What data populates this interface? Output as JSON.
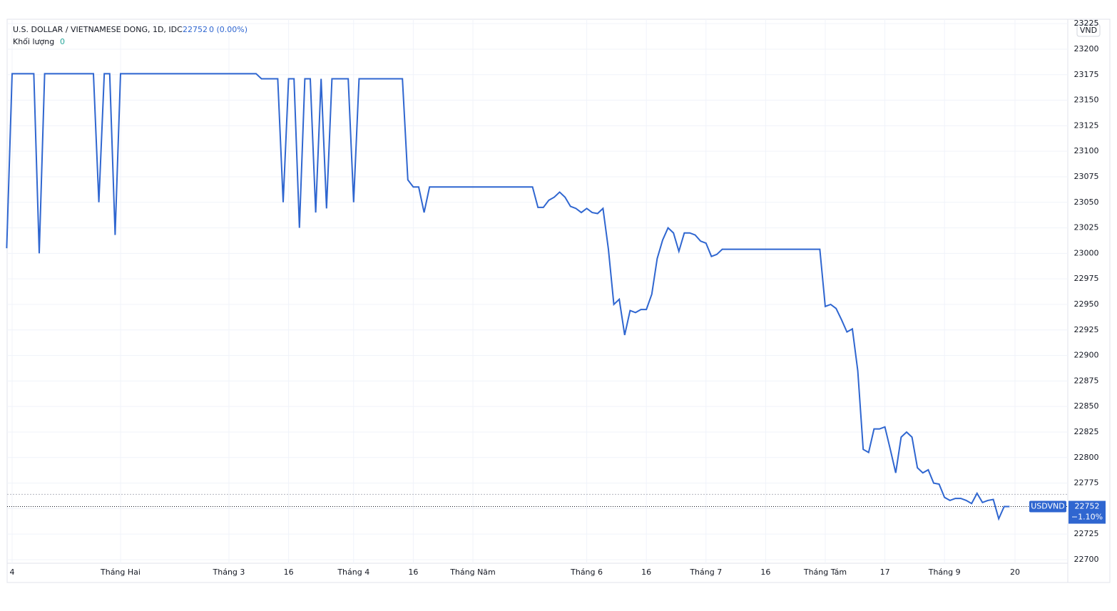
{
  "chart_data": {
    "type": "line",
    "title": "U.S. DOLLAR / VIETNAMESE DONG, 1D, IDC",
    "last": 22752,
    "change": "0 (0.00%)",
    "volume_label": "Khối lượng",
    "volume": 0,
    "currency": "VND",
    "symbol": "USDVND",
    "change_label": "−1.10%",
    "reference_line": 22764,
    "grid": true,
    "xlim": [
      -0.92,
      194.74
    ],
    "ylim": [
      22696.5,
      23229.3
    ],
    "yticks": [
      22700,
      22725,
      22750,
      22775,
      22800,
      22825,
      22850,
      22875,
      22900,
      22925,
      22950,
      22975,
      23000,
      23025,
      23050,
      23075,
      23100,
      23125,
      23150,
      23175,
      23200,
      23225
    ],
    "xticks": [
      {
        "value": 0,
        "label": "4"
      },
      {
        "value": 20,
        "label": "Tháng Hai"
      },
      {
        "value": 40,
        "label": "Tháng 3"
      },
      {
        "value": 51,
        "label": "16"
      },
      {
        "value": 63,
        "label": "Tháng 4"
      },
      {
        "value": 74,
        "label": "16"
      },
      {
        "value": 85,
        "label": "Tháng Năm"
      },
      {
        "value": 106,
        "label": "Tháng 6"
      },
      {
        "value": 117,
        "label": "16"
      },
      {
        "value": 128,
        "label": "Tháng 7"
      },
      {
        "value": 139,
        "label": "16"
      },
      {
        "value": 150,
        "label": "Tháng Tám"
      },
      {
        "value": 161,
        "label": "17"
      },
      {
        "value": 172,
        "label": "Tháng 9"
      },
      {
        "value": 185,
        "label": "20"
      }
    ],
    "series": [
      {
        "name": "USDVND",
        "color": "#2f66d0",
        "x": [
          -1,
          0,
          4,
          5,
          6,
          15,
          16,
          17,
          18,
          19,
          20,
          45,
          46,
          49,
          50,
          51,
          52,
          53,
          54,
          55,
          56,
          57,
          58,
          59,
          62,
          63,
          64,
          72,
          73,
          74,
          75,
          76,
          77,
          96,
          97,
          98,
          99,
          100,
          101,
          102,
          103,
          104,
          105,
          106,
          107,
          108,
          109,
          110,
          111,
          112,
          113,
          114,
          115,
          116,
          117,
          118,
          119,
          120,
          121,
          122,
          123,
          124,
          125,
          126,
          127,
          128,
          129,
          130,
          131,
          149,
          150,
          151,
          152,
          153,
          154,
          155,
          156,
          157,
          158,
          159,
          160,
          161,
          162,
          163,
          164,
          165,
          166,
          167,
          168,
          169,
          170,
          171,
          172,
          173,
          174,
          175,
          176,
          177,
          178,
          179,
          180,
          181,
          182,
          183,
          184
        ],
        "values": [
          23005,
          23176,
          23176,
          23000,
          23176,
          23176,
          23050,
          23176,
          23176,
          23018,
          23176,
          23176,
          23171,
          23171,
          23050,
          23171,
          23171,
          23025,
          23171,
          23171,
          23040,
          23171,
          23044,
          23171,
          23171,
          23050,
          23171,
          23171,
          23072,
          23065,
          23065,
          23040,
          23065,
          23065,
          23045,
          23045,
          23052,
          23055,
          23060,
          23055,
          23046,
          23044,
          23040,
          23044,
          23040,
          23039,
          23044,
          23004,
          22950,
          22955,
          22920,
          22944,
          22942,
          22945,
          22945,
          22960,
          22995,
          23013,
          23025,
          23020,
          23002,
          23020,
          23020,
          23018,
          23012,
          23010,
          22997,
          22999,
          23004,
          23004,
          22948,
          22950,
          22946,
          22935,
          22923,
          22926,
          22885,
          22808,
          22805,
          22828,
          22828,
          22830,
          22808,
          22785,
          22820,
          22825,
          22820,
          22790,
          22785,
          22788,
          22775,
          22774,
          22761,
          22758,
          22760,
          22760,
          22758,
          22755,
          22765,
          22756,
          22758,
          22759,
          22740,
          22752,
          22752
        ]
      }
    ]
  }
}
